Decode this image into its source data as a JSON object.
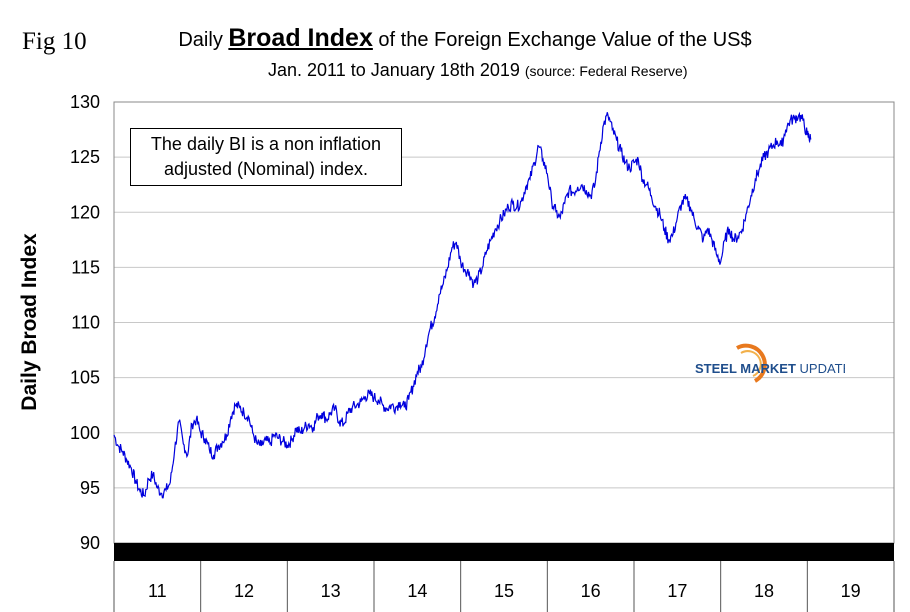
{
  "fig_label": "Fig 10",
  "title": {
    "prefix": "Daily ",
    "emphasis": "Broad Index",
    "suffix": " of the Foreign Exchange Value of the US$"
  },
  "subtitle": {
    "main": "Jan. 2011 to January 18th 2019 ",
    "source": "(source: Federal Reserve)"
  },
  "note": {
    "line1": "The daily BI is a non inflation",
    "line2": "adjusted (Nominal) index."
  },
  "logo": {
    "brand": "STEEL",
    "brand2": "MARKET",
    "brand3": "UPDATE"
  },
  "colors": {
    "series": "#0000dd",
    "grid": "#c8c8c8",
    "base_bar": "#000000",
    "logo_blue": "#1f4e8c",
    "logo_orange": "#e8791e"
  },
  "chart_data": {
    "type": "line",
    "ylabel": "Daily Broad Index",
    "xlabel": "",
    "ylim": [
      90,
      130
    ],
    "yticks": [
      90,
      95,
      100,
      105,
      110,
      115,
      120,
      125,
      130
    ],
    "xlim": [
      2011.0,
      2020.0
    ],
    "x_categories": [
      "11",
      "12",
      "13",
      "14",
      "15",
      "16",
      "17",
      "18",
      "19"
    ],
    "grid": true,
    "series": [
      {
        "x": [
          2011.0,
          2011.05,
          2011.1,
          2011.15,
          2011.2,
          2011.25,
          2011.3,
          2011.35,
          2011.4,
          2011.45,
          2011.5,
          2011.55,
          2011.6,
          2011.65,
          2011.7,
          2011.75,
          2011.8,
          2011.85,
          2011.9,
          2011.95,
          2012.0,
          2012.05,
          2012.1,
          2012.15,
          2012.2,
          2012.25,
          2012.3,
          2012.35,
          2012.4,
          2012.45,
          2012.5,
          2012.55,
          2012.6,
          2012.65,
          2012.7,
          2012.75,
          2012.8,
          2012.85,
          2012.9,
          2012.95,
          2013.0,
          2013.05,
          2013.1,
          2013.15,
          2013.2,
          2013.25,
          2013.3,
          2013.35,
          2013.4,
          2013.45,
          2013.5,
          2013.55,
          2013.6,
          2013.65,
          2013.7,
          2013.75,
          2013.8,
          2013.85,
          2013.9,
          2013.95,
          2014.0,
          2014.05,
          2014.1,
          2014.15,
          2014.2,
          2014.25,
          2014.3,
          2014.35,
          2014.4,
          2014.45,
          2014.5,
          2014.55,
          2014.6,
          2014.65,
          2014.7,
          2014.75,
          2014.8,
          2014.85,
          2014.9,
          2014.95,
          2015.0,
          2015.05,
          2015.1,
          2015.15,
          2015.2,
          2015.25,
          2015.3,
          2015.35,
          2015.4,
          2015.45,
          2015.5,
          2015.55,
          2015.6,
          2015.65,
          2015.7,
          2015.75,
          2015.8,
          2015.85,
          2015.9,
          2015.95,
          2016.0,
          2016.05,
          2016.1,
          2016.15,
          2016.2,
          2016.25,
          2016.3,
          2016.35,
          2016.4,
          2016.45,
          2016.5,
          2016.55,
          2016.6,
          2016.65,
          2016.7,
          2016.75,
          2016.8,
          2016.85,
          2016.9,
          2016.95,
          2017.0,
          2017.05,
          2017.1,
          2017.15,
          2017.2,
          2017.25,
          2017.3,
          2017.35,
          2017.4,
          2017.45,
          2017.5,
          2017.55,
          2017.6,
          2017.65,
          2017.7,
          2017.75,
          2017.8,
          2017.85,
          2017.9,
          2017.95,
          2018.0,
          2018.05,
          2018.1,
          2018.15,
          2018.2,
          2018.25,
          2018.3,
          2018.35,
          2018.4,
          2018.45,
          2018.5,
          2018.55,
          2018.6,
          2018.65,
          2018.7,
          2018.75,
          2018.8,
          2018.85,
          2018.9,
          2018.95,
          2019.0,
          2019.02,
          2019.04
        ],
        "y": [
          99.8,
          98.8,
          98.3,
          97.5,
          96.8,
          95.6,
          94.7,
          94.3,
          95.8,
          96.2,
          95.0,
          94.5,
          94.8,
          95.5,
          98.5,
          101.0,
          99.0,
          98.0,
          100.8,
          101.2,
          100.0,
          99.5,
          98.5,
          98.0,
          98.8,
          99.2,
          99.8,
          101.5,
          102.5,
          102.3,
          101.8,
          101.5,
          100.0,
          99.0,
          98.8,
          99.3,
          99.0,
          99.8,
          99.5,
          99.2,
          98.9,
          99.3,
          100.4,
          100.0,
          100.5,
          100.8,
          100.5,
          101.5,
          101.8,
          101.2,
          101.8,
          102.2,
          101.0,
          100.8,
          101.8,
          102.3,
          102.5,
          102.8,
          103.3,
          103.5,
          103.2,
          103.0,
          102.5,
          102.2,
          102.5,
          102.3,
          102.8,
          102.3,
          103.0,
          104.2,
          105.5,
          106.0,
          108.0,
          109.5,
          110.5,
          112.5,
          113.5,
          115.0,
          116.8,
          117.3,
          115.5,
          114.8,
          114.5,
          113.5,
          114.0,
          115.0,
          116.5,
          117.5,
          118.5,
          119.2,
          119.8,
          120.5,
          120.8,
          120.5,
          121.0,
          122.3,
          123.0,
          124.5,
          126.0,
          124.8,
          123.5,
          121.0,
          120.0,
          119.5,
          120.8,
          122.0,
          121.8,
          122.3,
          122.5,
          122.0,
          121.5,
          122.5,
          125.5,
          128.0,
          128.8,
          127.5,
          126.5,
          125.5,
          124.5,
          124.0,
          124.5,
          124.8,
          123.0,
          122.5,
          121.5,
          120.5,
          119.8,
          118.5,
          117.5,
          118.0,
          119.5,
          120.8,
          121.2,
          120.5,
          119.2,
          118.5,
          117.5,
          118.5,
          117.5,
          116.2,
          115.5,
          117.5,
          118.5,
          117.5,
          117.8,
          118.5,
          120.0,
          121.5,
          123.0,
          124.0,
          125.0,
          125.5,
          126.0,
          126.5,
          126.0,
          127.5,
          128.3,
          128.5,
          128.8,
          128.3,
          127.0,
          126.8,
          126.6
        ]
      }
    ]
  }
}
